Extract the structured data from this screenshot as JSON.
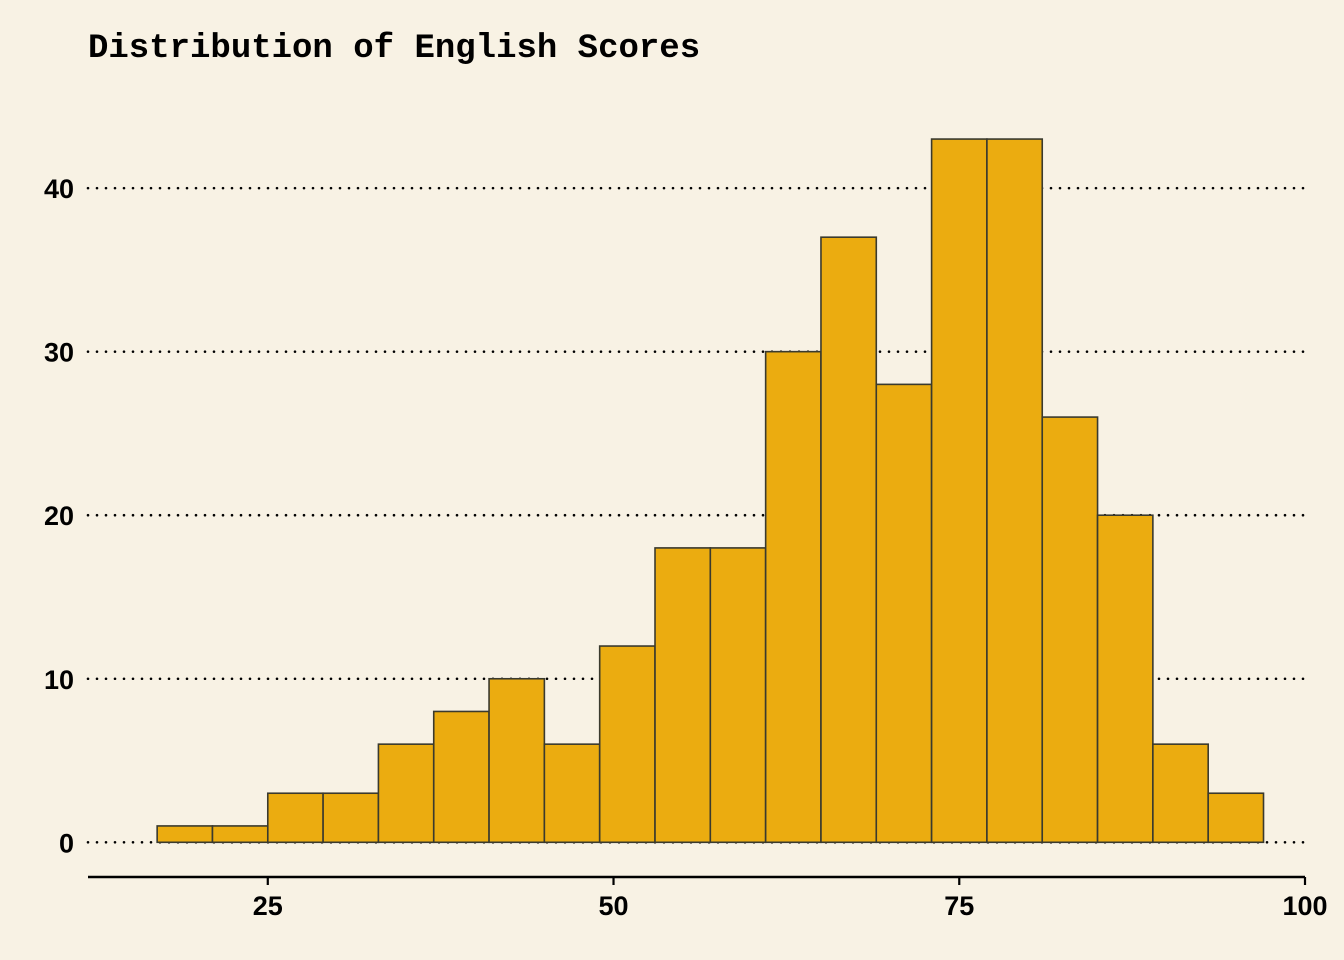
{
  "chart_data": {
    "type": "histogram",
    "title": "Distribution of English Scores",
    "xlabel": "",
    "ylabel": "",
    "bin_width": 4,
    "bin_edges": [
      17,
      21,
      25,
      29,
      33,
      37,
      41,
      45,
      49,
      53,
      57,
      61,
      65,
      69,
      73,
      77,
      81,
      85,
      89,
      93,
      97
    ],
    "values": [
      1,
      1,
      3,
      3,
      6,
      8,
      10,
      6,
      12,
      18,
      18,
      30,
      37,
      28,
      43,
      43,
      26,
      20,
      6,
      3
    ],
    "xlim": [
      12,
      100
    ],
    "ylim": [
      -2,
      46
    ],
    "x_ticks": [
      25,
      50,
      75,
      100
    ],
    "y_ticks": [
      0,
      10,
      20,
      30,
      40
    ],
    "x_tick_labels": [
      "25",
      "50",
      "75",
      "100"
    ],
    "y_tick_labels": [
      "0",
      "10",
      "20",
      "30",
      "40"
    ],
    "grid": "horizontal dotted",
    "legend": "none",
    "colors": {
      "background": "#f8f2e4",
      "bar_fill": "#ebac10",
      "bar_stroke": "#3a3a2e",
      "grid": "#000000",
      "axis": "#000000"
    }
  }
}
